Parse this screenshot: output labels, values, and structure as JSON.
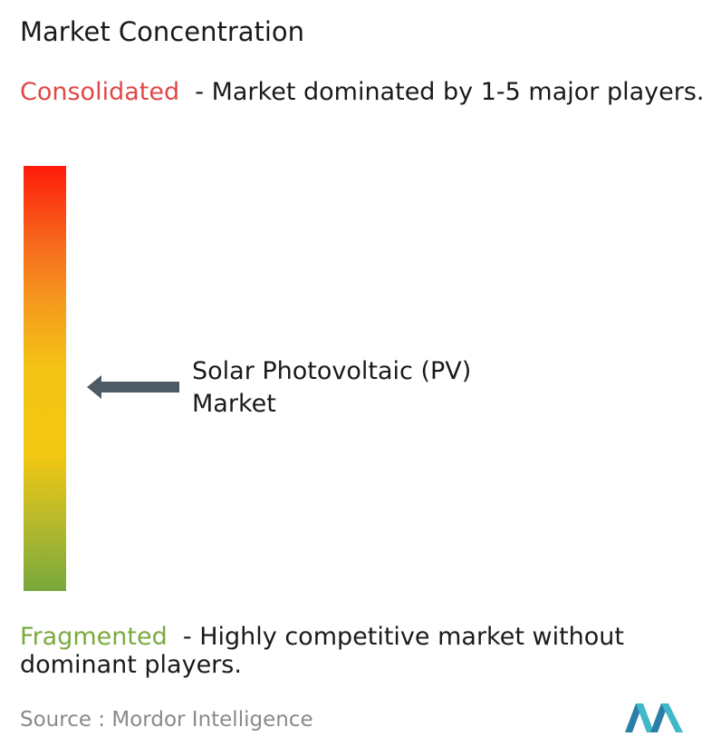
{
  "title": "Market Concentration",
  "consolidated": {
    "label": "Consolidated",
    "description": "- Market dominated by 1-5 major players."
  },
  "market": {
    "label": "Solar Photovoltaic (PV) Market"
  },
  "fragmented": {
    "label": "Fragmented",
    "description": "- Highly competitive market without dominant players."
  },
  "source": {
    "label": "Source :",
    "name": "Mordor Intelligence"
  }
}
